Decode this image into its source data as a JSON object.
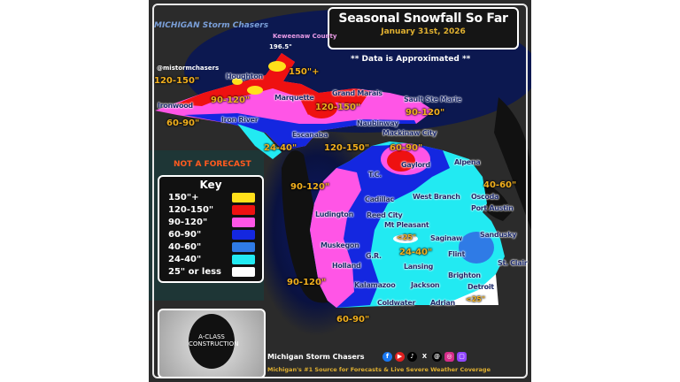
{
  "title": "Seasonal Snowfall So Far",
  "date": "January 31st, 2026",
  "note": "** Data is Approximated **",
  "disclaimer": "NOT A FORECAST",
  "handle": "@mistormchasers",
  "watermark": "MICHIGAN Storm Chasers",
  "max_report": {
    "place": "Keweenaw County",
    "value": "196.5\""
  },
  "key": {
    "title": "Key",
    "items": [
      {
        "label": "150\"+",
        "color": "#ffe01a"
      },
      {
        "label": "120-150\"",
        "color": "#ee1111"
      },
      {
        "label": "90-120\"",
        "color": "#ff55e6"
      },
      {
        "label": "60-90\"",
        "color": "#1427e0"
      },
      {
        "label": "40-60\"",
        "color": "#2f7be6"
      },
      {
        "label": "24-40\"",
        "color": "#22eaf2"
      },
      {
        "label": "25\" or less",
        "color": "#ffffff"
      }
    ]
  },
  "cities": [
    "Houghton",
    "Ironwood",
    "Iron River",
    "Marquette",
    "Grand Marais",
    "Sault Ste Marie",
    "Naubinway",
    "Escanaba",
    "Mackinaw City",
    "Gaylord",
    "Alpena",
    "T.C.",
    "Cadillac",
    "West Branch",
    "Oscoda",
    "Ludington",
    "Reed City",
    "Port Austin",
    "Mt Pleasant",
    "Saginaw",
    "Sandusky",
    "Muskegon",
    "G.R.",
    "Flint",
    "Holland",
    "Lansing",
    "St. Clair",
    "Brighton",
    "Kalamazoo",
    "Jackson",
    "Detroit",
    "Coldwater",
    "Adrian"
  ],
  "amounts": [
    "120-150\"",
    "150\"+",
    "90-120\"",
    "60-90\"",
    "120-150\"",
    "90-120\"",
    "24-40\"",
    "120-150\"",
    "60-90\"",
    "90-120\"",
    "40-60\"",
    "<25\"",
    "24-40\"",
    "90-120\"",
    "60-90\"",
    "<25\""
  ],
  "logo_text": "A-CLASS CONSTRUCTION",
  "footer": {
    "brand": "Michigan Storm Chasers",
    "tagline": "Michigan's #1 Source for Forecasts & Live Severe Weather Coverage",
    "social_icons": [
      "facebook-icon",
      "youtube-icon",
      "tiktok-icon",
      "x-icon",
      "threads-icon",
      "instagram-icon",
      "twitch-icon"
    ]
  }
}
